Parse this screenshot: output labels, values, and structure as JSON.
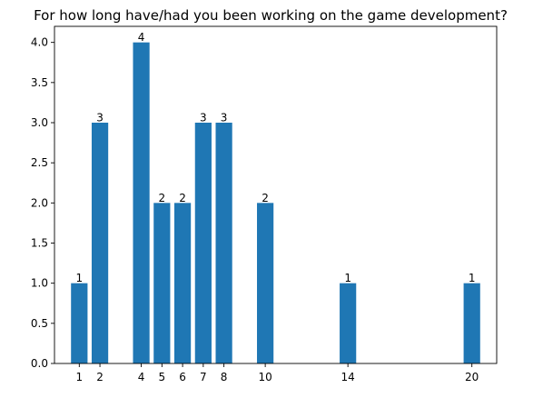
{
  "chart_data": {
    "type": "bar",
    "title": "For how long have/had you been working on the game development?",
    "xlabel": "",
    "ylabel": "",
    "x": [
      1,
      2,
      4,
      5,
      6,
      7,
      8,
      10,
      14,
      20
    ],
    "values": [
      1,
      3,
      4,
      2,
      2,
      3,
      3,
      2,
      1,
      1
    ],
    "data_labels": [
      "1",
      "3",
      "4",
      "2",
      "2",
      "3",
      "3",
      "2",
      "1",
      "1"
    ],
    "xticks": [
      "1",
      "2",
      "4",
      "5",
      "6",
      "7",
      "8",
      "10",
      "14",
      "20"
    ],
    "yticks": [
      "0.0",
      "0.5",
      "1.0",
      "1.5",
      "2.0",
      "2.5",
      "3.0",
      "3.5",
      "4.0"
    ],
    "xlim": [
      -0.2,
      21.2
    ],
    "ylim": [
      0,
      4.2
    ],
    "grid": false,
    "bar_color": "#1f77b4"
  }
}
